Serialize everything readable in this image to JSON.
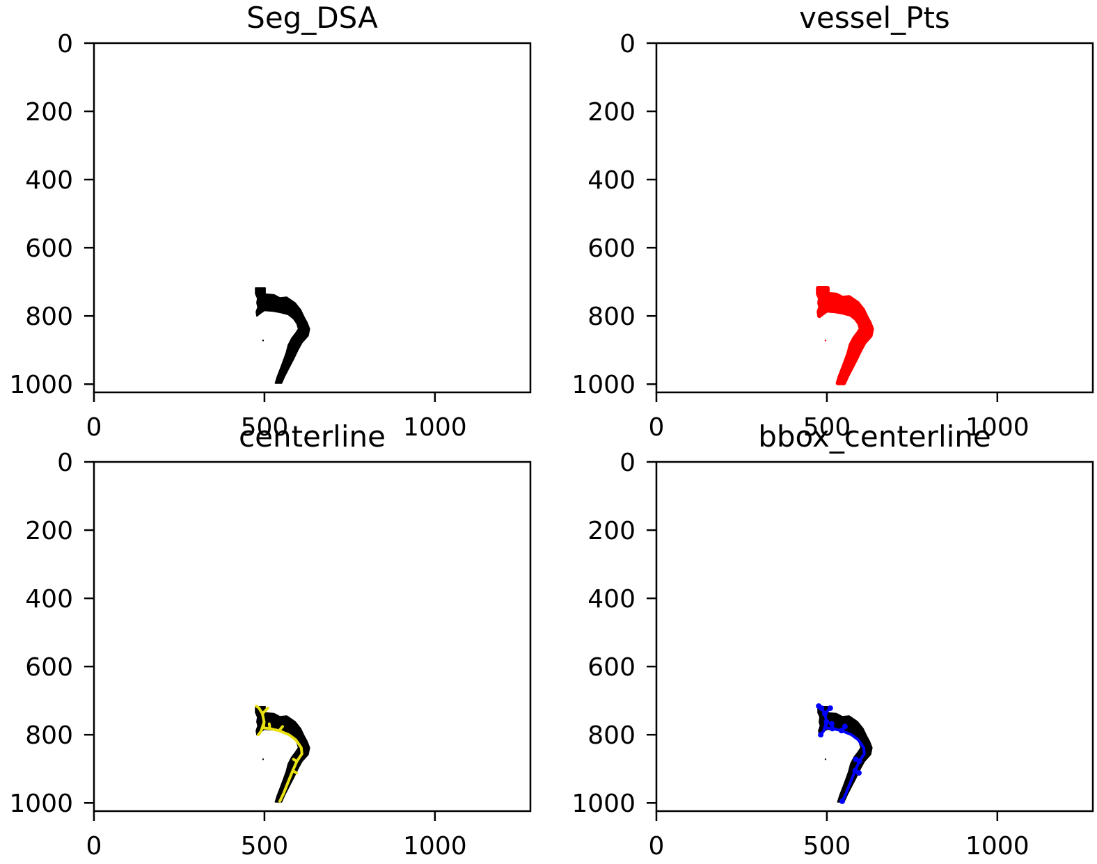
{
  "figure": {
    "background": "#ffffff"
  },
  "chart_data": [
    {
      "type": "image",
      "title": "Seg_DSA",
      "xlabel": "",
      "ylabel": "",
      "xlim": [
        0,
        1280
      ],
      "ylim": [
        1024,
        0
      ],
      "xticks": [
        0,
        500,
        1000
      ],
      "yticks": [
        0,
        200,
        400,
        600,
        800,
        1000
      ],
      "layers": [
        {
          "name": "",
          "kind": "mask",
          "color": "#000000"
        }
      ]
    },
    {
      "type": "image",
      "title": "vessel_Pts",
      "xlabel": "",
      "ylabel": "",
      "xlim": [
        0,
        1280
      ],
      "ylim": [
        1024,
        0
      ],
      "xticks": [
        0,
        500,
        1000
      ],
      "yticks": [
        0,
        200,
        400,
        600,
        800,
        1000
      ],
      "layers": [
        {
          "name": "",
          "kind": "mask",
          "color": "#ff0000"
        }
      ]
    },
    {
      "type": "image",
      "title": "centerline",
      "xlabel": "",
      "ylabel": "",
      "xlim": [
        0,
        1280
      ],
      "ylim": [
        1024,
        0
      ],
      "xticks": [
        0,
        500,
        1000
      ],
      "yticks": [
        0,
        200,
        400,
        600,
        800,
        1000
      ],
      "layers": [
        {
          "name": "",
          "kind": "mask",
          "color": "#000000"
        },
        {
          "name": "",
          "kind": "centerline",
          "color": "#e8e010"
        }
      ]
    },
    {
      "type": "image",
      "title": "bbox_centerline",
      "xlabel": "",
      "ylabel": "",
      "xlim": [
        0,
        1280
      ],
      "ylim": [
        1024,
        0
      ],
      "xticks": [
        0,
        500,
        1000
      ],
      "yticks": [
        0,
        200,
        400,
        600,
        800,
        1000
      ],
      "layers": [
        {
          "name": "",
          "kind": "mask",
          "color": "#000000"
        },
        {
          "name": "",
          "kind": "centerline",
          "color": "#0000ff"
        }
      ]
    }
  ],
  "vessel": {
    "mask_outline": [
      [
        474,
        718
      ],
      [
        502,
        718
      ],
      [
        502,
        736
      ],
      [
        528,
        738
      ],
      [
        545,
        747
      ],
      [
        565,
        745
      ],
      [
        590,
        762
      ],
      [
        606,
        782
      ],
      [
        616,
        803
      ],
      [
        625,
        820
      ],
      [
        632,
        838
      ],
      [
        628,
        858
      ],
      [
        610,
        878
      ],
      [
        598,
        900
      ],
      [
        586,
        925
      ],
      [
        573,
        950
      ],
      [
        560,
        975
      ],
      [
        550,
        997
      ],
      [
        532,
        997
      ],
      [
        538,
        978
      ],
      [
        548,
        952
      ],
      [
        557,
        928
      ],
      [
        564,
        908
      ],
      [
        570,
        885
      ],
      [
        580,
        866
      ],
      [
        592,
        850
      ],
      [
        600,
        838
      ],
      [
        595,
        822
      ],
      [
        585,
        808
      ],
      [
        570,
        796
      ],
      [
        548,
        790
      ],
      [
        525,
        786
      ],
      [
        500,
        784
      ],
      [
        488,
        792
      ],
      [
        478,
        800
      ],
      [
        476,
        788
      ],
      [
        481,
        774
      ],
      [
        478,
        762
      ],
      [
        480,
        748
      ],
      [
        474,
        735
      ]
    ],
    "stray_points": [
      [
        496,
        872
      ]
    ],
    "centerline_paths": [
      [
        [
          484,
          722
        ],
        [
          494,
          738
        ],
        [
          499,
          762
        ],
        [
          497,
          780
        ],
        [
          516,
          782
        ],
        [
          543,
          788
        ],
        [
          572,
          800
        ],
        [
          592,
          815
        ],
        [
          608,
          838
        ],
        [
          610,
          856
        ],
        [
          595,
          878
        ],
        [
          583,
          905
        ],
        [
          569,
          940
        ],
        [
          556,
          972
        ],
        [
          545,
          995
        ]
      ],
      [
        [
          499,
          762
        ],
        [
          490,
          790
        ],
        [
          482,
          800
        ]
      ],
      [
        [
          484,
          722
        ],
        [
          476,
          716
        ]
      ],
      [
        [
          494,
          738
        ],
        [
          510,
          722
        ]
      ],
      [
        [
          516,
          782
        ],
        [
          514,
          768
        ]
      ],
      [
        [
          543,
          788
        ],
        [
          553,
          776
        ]
      ],
      [
        [
          595,
          878
        ],
        [
          585,
          872
        ]
      ],
      [
        [
          583,
          905
        ],
        [
          594,
          912
        ]
      ]
    ]
  }
}
